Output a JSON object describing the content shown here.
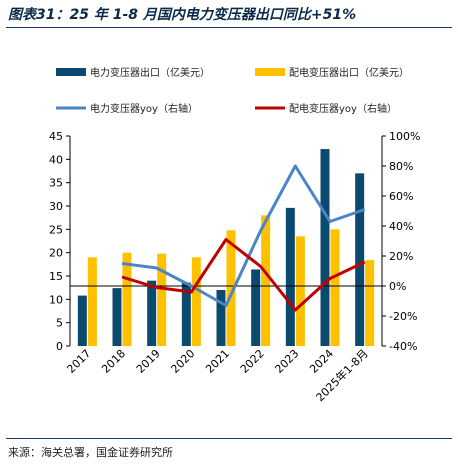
{
  "figure_title": "图表31：25 年 1-8 月国内电力变压器出口同比+51%",
  "source": "来源：海关总署，国金证券研究所",
  "colors": {
    "bar_series_1": "#0b4a6f",
    "bar_series_2": "#ffc000",
    "line_series_1": "#4a86c5",
    "line_series_2": "#c00000",
    "axis": "#000000"
  },
  "chart_data": {
    "type": "bar",
    "categories": [
      "2017",
      "2018",
      "2019",
      "2020",
      "2021",
      "2022",
      "2023",
      "2024",
      "2025年1-8月"
    ],
    "series": [
      {
        "name": "电力变压器出口（亿美元）",
        "type": "bar",
        "axis": "left",
        "values": [
          10.8,
          12.4,
          14.0,
          13.6,
          12.0,
          16.4,
          29.6,
          42.2,
          37.0
        ]
      },
      {
        "name": "配电变压器出口（亿美元）",
        "type": "bar",
        "axis": "left",
        "values": [
          19.0,
          20.0,
          19.8,
          19.0,
          24.8,
          28.0,
          23.5,
          25.0,
          18.4
        ]
      },
      {
        "name": "电力变压器yoy（右轴）",
        "type": "line",
        "axis": "right",
        "values": [
          null,
          0.15,
          0.12,
          0.0,
          -0.13,
          0.37,
          0.8,
          0.43,
          0.51
        ]
      },
      {
        "name": "配电变压器yoy（右轴）",
        "type": "line",
        "axis": "right",
        "values": [
          null,
          0.06,
          -0.01,
          -0.04,
          0.31,
          0.13,
          -0.16,
          0.05,
          0.16
        ]
      }
    ],
    "y_left": {
      "min": 0,
      "max": 45,
      "step": 5,
      "ticks": [
        "0",
        "5",
        "10",
        "15",
        "20",
        "25",
        "30",
        "35",
        "40",
        "45"
      ]
    },
    "y_right": {
      "min": -0.4,
      "max": 1.0,
      "step": 0.2,
      "ticks": [
        "-40%",
        "-20%",
        "0%",
        "20%",
        "40%",
        "60%",
        "80%",
        "100%"
      ]
    },
    "legend_position": "top",
    "grid": false
  }
}
